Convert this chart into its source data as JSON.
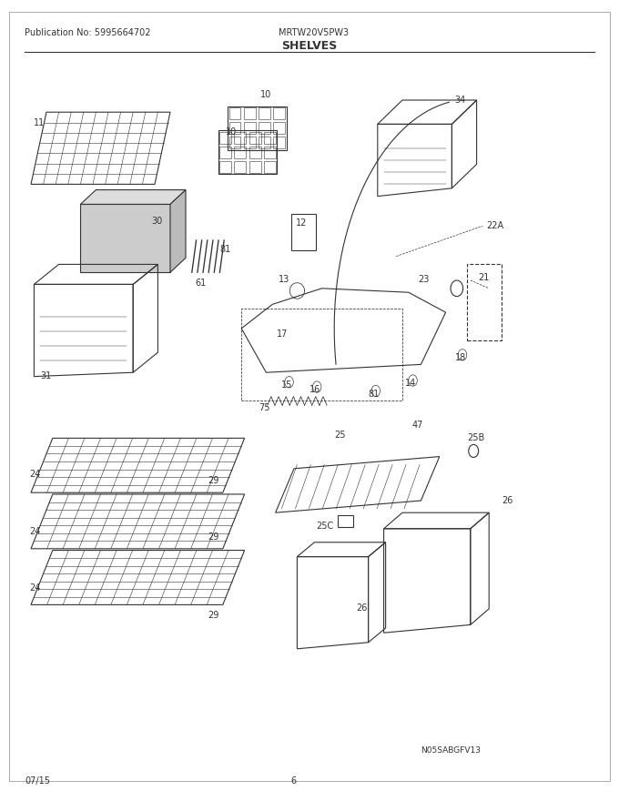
{
  "title": "SHELVES",
  "pub_no": "Publication No: 5995664702",
  "model": "MRTW20V5PW3",
  "date": "07/15",
  "page": "6",
  "watermark": "N05SABGFV13",
  "bg_color": "#ffffff",
  "line_color": "#333333"
}
